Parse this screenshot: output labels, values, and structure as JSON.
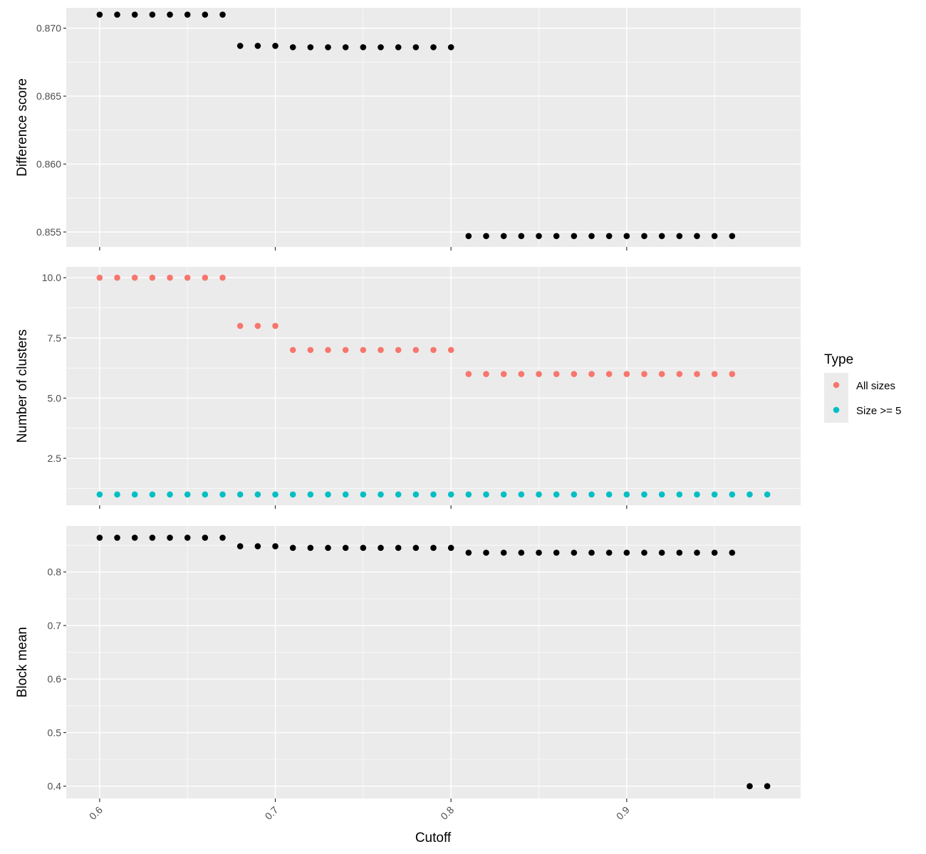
{
  "chart_data": {
    "type": "scatter",
    "x_label": "Cutoff",
    "x_ticks": [
      0.6,
      0.7,
      0.8,
      0.9
    ],
    "x_tick_labels": [
      "0.6",
      "0.7",
      "0.8",
      "0.9"
    ],
    "x_range": [
      0.581,
      0.999
    ],
    "grid": true,
    "legend": {
      "title": "Type",
      "position": "right",
      "items": [
        {
          "label": "All sizes",
          "color": "#F8766D"
        },
        {
          "label": "Size >= 5",
          "color": "#00BFC4"
        }
      ]
    },
    "panels": [
      {
        "id": "difference",
        "y_label": "Difference score",
        "y_range": [
          0.8539,
          0.8715
        ],
        "y_ticks": [
          0.855,
          0.86,
          0.865,
          0.87
        ],
        "y_tick_labels": [
          "0.855",
          "0.860",
          "0.865",
          "0.870"
        ],
        "series": [
          {
            "color": "#000000",
            "points": [
              [
                0.6,
                0.871
              ],
              [
                0.61,
                0.871
              ],
              [
                0.62,
                0.871
              ],
              [
                0.63,
                0.871
              ],
              [
                0.64,
                0.871
              ],
              [
                0.65,
                0.871
              ],
              [
                0.66,
                0.871
              ],
              [
                0.67,
                0.871
              ],
              [
                0.68,
                0.8687
              ],
              [
                0.69,
                0.8687
              ],
              [
                0.7,
                0.8687
              ],
              [
                0.71,
                0.8686
              ],
              [
                0.72,
                0.8686
              ],
              [
                0.73,
                0.8686
              ],
              [
                0.74,
                0.8686
              ],
              [
                0.75,
                0.8686
              ],
              [
                0.76,
                0.8686
              ],
              [
                0.77,
                0.8686
              ],
              [
                0.78,
                0.8686
              ],
              [
                0.79,
                0.8686
              ],
              [
                0.8,
                0.8686
              ],
              [
                0.81,
                0.8547
              ],
              [
                0.82,
                0.8547
              ],
              [
                0.83,
                0.8547
              ],
              [
                0.84,
                0.8547
              ],
              [
                0.85,
                0.8547
              ],
              [
                0.86,
                0.8547
              ],
              [
                0.87,
                0.8547
              ],
              [
                0.88,
                0.8547
              ],
              [
                0.89,
                0.8547
              ],
              [
                0.9,
                0.8547
              ],
              [
                0.91,
                0.8547
              ],
              [
                0.92,
                0.8547
              ],
              [
                0.93,
                0.8547
              ],
              [
                0.94,
                0.8547
              ],
              [
                0.95,
                0.8547
              ],
              [
                0.96,
                0.8547
              ]
            ]
          }
        ]
      },
      {
        "id": "clusters",
        "y_label": "Number of clusters",
        "y_range": [
          0.55,
          10.45
        ],
        "y_ticks": [
          2.5,
          5.0,
          7.5,
          10.0
        ],
        "y_tick_labels": [
          "2.5",
          "5.0",
          "7.5",
          "10.0"
        ],
        "series": [
          {
            "name": "All sizes",
            "color": "#F8766D",
            "points": [
              [
                0.6,
                10
              ],
              [
                0.61,
                10
              ],
              [
                0.62,
                10
              ],
              [
                0.63,
                10
              ],
              [
                0.64,
                10
              ],
              [
                0.65,
                10
              ],
              [
                0.66,
                10
              ],
              [
                0.67,
                10
              ],
              [
                0.68,
                8
              ],
              [
                0.69,
                8
              ],
              [
                0.7,
                8
              ],
              [
                0.71,
                7
              ],
              [
                0.72,
                7
              ],
              [
                0.73,
                7
              ],
              [
                0.74,
                7
              ],
              [
                0.75,
                7
              ],
              [
                0.76,
                7
              ],
              [
                0.77,
                7
              ],
              [
                0.78,
                7
              ],
              [
                0.79,
                7
              ],
              [
                0.8,
                7
              ],
              [
                0.81,
                6
              ],
              [
                0.82,
                6
              ],
              [
                0.83,
                6
              ],
              [
                0.84,
                6
              ],
              [
                0.85,
                6
              ],
              [
                0.86,
                6
              ],
              [
                0.87,
                6
              ],
              [
                0.88,
                6
              ],
              [
                0.89,
                6
              ],
              [
                0.9,
                6
              ],
              [
                0.91,
                6
              ],
              [
                0.92,
                6
              ],
              [
                0.93,
                6
              ],
              [
                0.94,
                6
              ],
              [
                0.95,
                6
              ],
              [
                0.96,
                6
              ]
            ]
          },
          {
            "name": "Size >= 5",
            "color": "#00BFC4",
            "points": [
              [
                0.6,
                1
              ],
              [
                0.61,
                1
              ],
              [
                0.62,
                1
              ],
              [
                0.63,
                1
              ],
              [
                0.64,
                1
              ],
              [
                0.65,
                1
              ],
              [
                0.66,
                1
              ],
              [
                0.67,
                1
              ],
              [
                0.68,
                1
              ],
              [
                0.69,
                1
              ],
              [
                0.7,
                1
              ],
              [
                0.71,
                1
              ],
              [
                0.72,
                1
              ],
              [
                0.73,
                1
              ],
              [
                0.74,
                1
              ],
              [
                0.75,
                1
              ],
              [
                0.76,
                1
              ],
              [
                0.77,
                1
              ],
              [
                0.78,
                1
              ],
              [
                0.79,
                1
              ],
              [
                0.8,
                1
              ],
              [
                0.81,
                1
              ],
              [
                0.82,
                1
              ],
              [
                0.83,
                1
              ],
              [
                0.84,
                1
              ],
              [
                0.85,
                1
              ],
              [
                0.86,
                1
              ],
              [
                0.87,
                1
              ],
              [
                0.88,
                1
              ],
              [
                0.89,
                1
              ],
              [
                0.9,
                1
              ],
              [
                0.91,
                1
              ],
              [
                0.92,
                1
              ],
              [
                0.93,
                1
              ],
              [
                0.94,
                1
              ],
              [
                0.95,
                1
              ],
              [
                0.96,
                1
              ],
              [
                0.97,
                1
              ],
              [
                0.98,
                1
              ]
            ]
          }
        ]
      },
      {
        "id": "block",
        "y_label": "Block mean",
        "y_range": [
          0.377,
          0.886
        ],
        "y_ticks": [
          0.4,
          0.5,
          0.6,
          0.7,
          0.8
        ],
        "y_tick_labels": [
          "0.4",
          "0.5",
          "0.6",
          "0.7",
          "0.8"
        ],
        "series": [
          {
            "color": "#000000",
            "points": [
              [
                0.6,
                0.864
              ],
              [
                0.61,
                0.864
              ],
              [
                0.62,
                0.864
              ],
              [
                0.63,
                0.864
              ],
              [
                0.64,
                0.864
              ],
              [
                0.65,
                0.864
              ],
              [
                0.66,
                0.864
              ],
              [
                0.67,
                0.864
              ],
              [
                0.68,
                0.848
              ],
              [
                0.69,
                0.848
              ],
              [
                0.7,
                0.848
              ],
              [
                0.71,
                0.845
              ],
              [
                0.72,
                0.845
              ],
              [
                0.73,
                0.845
              ],
              [
                0.74,
                0.845
              ],
              [
                0.75,
                0.845
              ],
              [
                0.76,
                0.845
              ],
              [
                0.77,
                0.845
              ],
              [
                0.78,
                0.845
              ],
              [
                0.79,
                0.845
              ],
              [
                0.8,
                0.845
              ],
              [
                0.81,
                0.836
              ],
              [
                0.82,
                0.836
              ],
              [
                0.83,
                0.836
              ],
              [
                0.84,
                0.836
              ],
              [
                0.85,
                0.836
              ],
              [
                0.86,
                0.836
              ],
              [
                0.87,
                0.836
              ],
              [
                0.88,
                0.836
              ],
              [
                0.89,
                0.836
              ],
              [
                0.9,
                0.836
              ],
              [
                0.91,
                0.836
              ],
              [
                0.92,
                0.836
              ],
              [
                0.93,
                0.836
              ],
              [
                0.94,
                0.836
              ],
              [
                0.95,
                0.836
              ],
              [
                0.96,
                0.836
              ],
              [
                0.97,
                0.4
              ],
              [
                0.98,
                0.4
              ]
            ]
          }
        ]
      }
    ]
  }
}
